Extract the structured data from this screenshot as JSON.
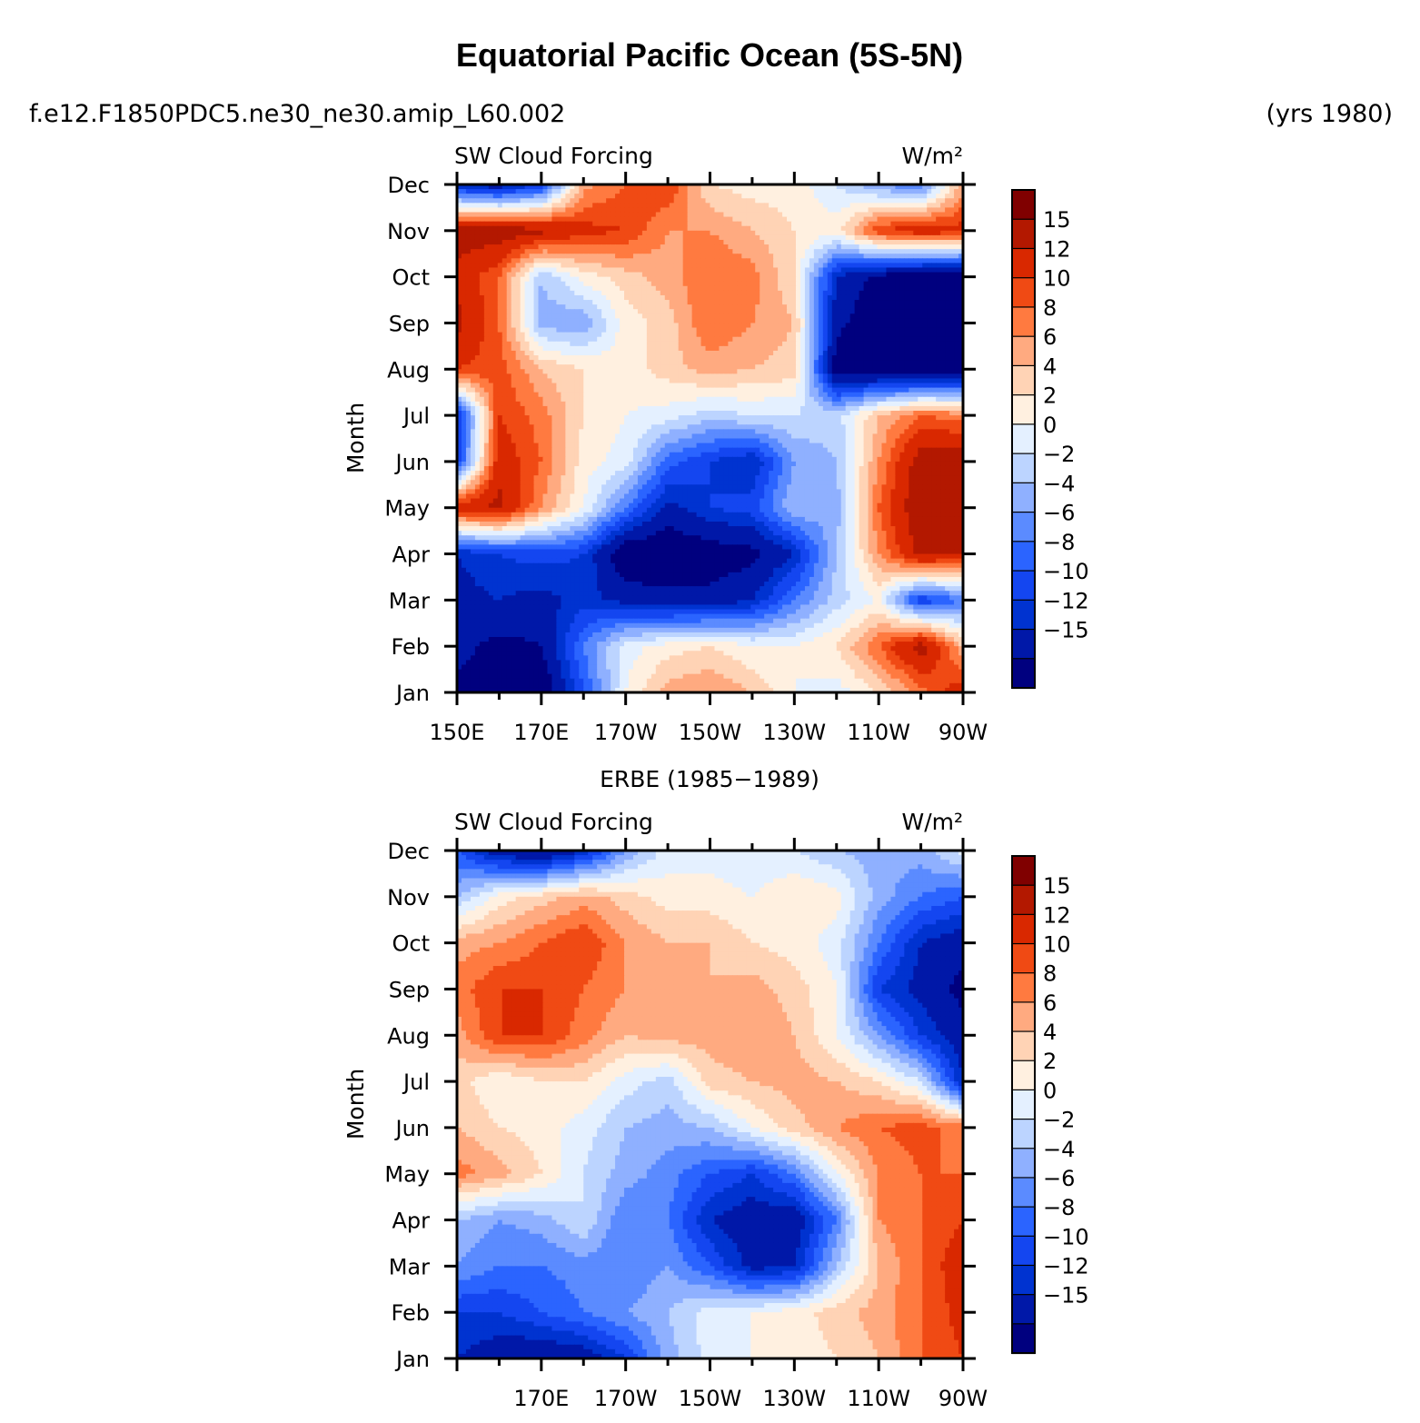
{
  "figure_title": "Equatorial Pacific Ocean (5S-5N)",
  "case_name": "f.e12.F1850PDC5.ne30_ne30.amip_L60.002",
  "years_label": "(yrs 1980)",
  "colors": {
    "levels": [
      -15,
      -12,
      -10,
      -8,
      -6,
      -4,
      -2,
      0,
      2,
      4,
      6,
      8,
      10,
      12,
      15
    ],
    "fills": [
      "#00007f",
      "#0018a8",
      "#0033d0",
      "#1446f0",
      "#2b64ff",
      "#5b8bff",
      "#8fb0ff",
      "#bcd4ff",
      "#e4f0ff",
      "#fff0e0",
      "#ffd3b5",
      "#ffaa80",
      "#ff7a40",
      "#f04a14",
      "#d92800",
      "#b31800",
      "#800000"
    ]
  },
  "chart_data": [
    {
      "type": "heatmap",
      "panel_title": "",
      "left_label": "SW Cloud Forcing",
      "units": "W/m²",
      "ylabel": "Month",
      "x_ticks": [
        "150E",
        "170E",
        "170W",
        "150W",
        "130W",
        "110W",
        "90W"
      ],
      "y_ticks": [
        "Jan",
        "Feb",
        "Mar",
        "Apr",
        "May",
        "Jun",
        "Jul",
        "Aug",
        "Sep",
        "Oct",
        "Nov",
        "Dec"
      ],
      "lon_range": [
        150,
        270
      ],
      "colorbar_labels": [
        "15",
        "12",
        "10",
        "8",
        "6",
        "4",
        "2",
        "0",
        "−2",
        "−4",
        "−6",
        "−8",
        "−10",
        "−12",
        "−15"
      ],
      "lon": [
        150,
        160,
        170,
        180,
        190,
        200,
        210,
        220,
        230,
        240,
        250,
        260,
        270
      ],
      "months": [
        "Jan",
        "Feb",
        "Mar",
        "Apr",
        "May",
        "Jun",
        "Jul",
        "Aug",
        "Sep",
        "Oct",
        "Nov",
        "Dec"
      ],
      "values": [
        [
          -16,
          -17,
          -18,
          -8,
          2,
          7,
          8,
          6,
          2,
          1,
          4,
          9,
          14
        ],
        [
          -14,
          -16,
          -15,
          -6,
          1,
          3,
          4,
          2,
          2,
          4,
          10,
          17,
          6
        ],
        [
          -13,
          -12,
          -13,
          -11,
          -13,
          -14,
          -14,
          -12,
          -6,
          -1,
          2,
          -10,
          -6
        ],
        [
          -12,
          -10,
          -9,
          -10,
          -18,
          -18,
          -17,
          -16,
          -12,
          -2,
          8,
          16,
          15
        ],
        [
          14,
          16,
          8,
          2,
          -6,
          -13,
          -10,
          -9,
          -2,
          -3,
          10,
          18,
          17
        ],
        [
          -10,
          14,
          10,
          3,
          1,
          -7,
          -10,
          -12,
          -4,
          -2,
          8,
          17,
          17
        ],
        [
          -11,
          12,
          9,
          4,
          2,
          1,
          -1,
          0,
          0,
          -1,
          6,
          10,
          9
        ],
        [
          12,
          11,
          6,
          4,
          3,
          5,
          7,
          6,
          5,
          -17,
          -18,
          -18,
          -18
        ],
        [
          16,
          10,
          -3,
          -4,
          3,
          5,
          10,
          8,
          6,
          -14,
          -18,
          -18,
          -18
        ],
        [
          14,
          10,
          -2,
          3,
          5,
          7,
          10,
          9,
          4,
          -12,
          -16,
          -18,
          -18
        ],
        [
          17,
          17,
          16,
          13,
          12,
          8,
          8,
          6,
          4,
          3,
          12,
          14,
          13
        ],
        [
          -12,
          -14,
          -10,
          7,
          10,
          12,
          4,
          3,
          3,
          0,
          -4,
          -6,
          7
        ]
      ]
    },
    {
      "type": "heatmap",
      "panel_title": "ERBE (1985−1989)",
      "left_label": "SW Cloud Forcing",
      "units": "W/m²",
      "ylabel": "Month",
      "x_ticks": [
        "170E",
        "170W",
        "150W",
        "130W",
        "110W",
        "90W"
      ],
      "y_ticks": [
        "Jan",
        "Feb",
        "Mar",
        "Apr",
        "May",
        "Jun",
        "Jul",
        "Aug",
        "Sep",
        "Oct",
        "Nov",
        "Dec"
      ],
      "lon_range": [
        150,
        270
      ],
      "colorbar_labels": [
        "15",
        "12",
        "10",
        "8",
        "6",
        "4",
        "2",
        "0",
        "−2",
        "−4",
        "−6",
        "−8",
        "−10",
        "−12",
        "−15"
      ],
      "lon": [
        150,
        160,
        170,
        180,
        190,
        200,
        210,
        220,
        230,
        240,
        250,
        260,
        270
      ],
      "months": [
        "Jan",
        "Feb",
        "Mar",
        "Apr",
        "May",
        "Jun",
        "Jul",
        "Aug",
        "Sep",
        "Oct",
        "Nov",
        "Dec"
      ],
      "values": [
        [
          -12,
          -14,
          -15,
          -14,
          -10,
          -3,
          1,
          2,
          3,
          4,
          6,
          10,
          12
        ],
        [
          -10,
          -10,
          -8,
          -6,
          -4,
          -2,
          1,
          2,
          3,
          5,
          7,
          10,
          13
        ],
        [
          -4,
          -6,
          -6,
          -5,
          -6,
          -4,
          -8,
          -13,
          -12,
          -2,
          6,
          10,
          14
        ],
        [
          -2,
          -4,
          -3,
          0,
          -6,
          -6,
          -12,
          -14,
          -14,
          -6,
          8,
          10,
          12
        ],
        [
          9,
          7,
          4,
          0,
          -3,
          -5,
          -8,
          -10,
          -6,
          2,
          8,
          10,
          10
        ],
        [
          6,
          4,
          3,
          1,
          -2,
          -3,
          -2,
          2,
          5,
          8,
          10,
          11,
          9
        ],
        [
          5,
          2,
          4,
          4,
          1,
          -1,
          5,
          6,
          7,
          6,
          4,
          0,
          -12
        ],
        [
          7,
          12,
          12,
          9,
          6,
          7,
          7,
          8,
          6,
          2,
          -4,
          -10,
          -14
        ],
        [
          9,
          12,
          12,
          10,
          8,
          7,
          6,
          7,
          5,
          2,
          -10,
          -13,
          -16
        ],
        [
          7,
          8,
          10,
          12,
          8,
          6,
          6,
          4,
          3,
          1,
          -6,
          -12,
          -14
        ],
        [
          -2,
          3,
          5,
          7,
          5,
          3,
          3,
          2,
          4,
          3,
          -3,
          -6,
          -8
        ],
        [
          -8,
          -14,
          -16,
          -12,
          -4,
          1,
          1,
          0,
          0,
          -2,
          -3,
          -3,
          1
        ]
      ]
    }
  ]
}
